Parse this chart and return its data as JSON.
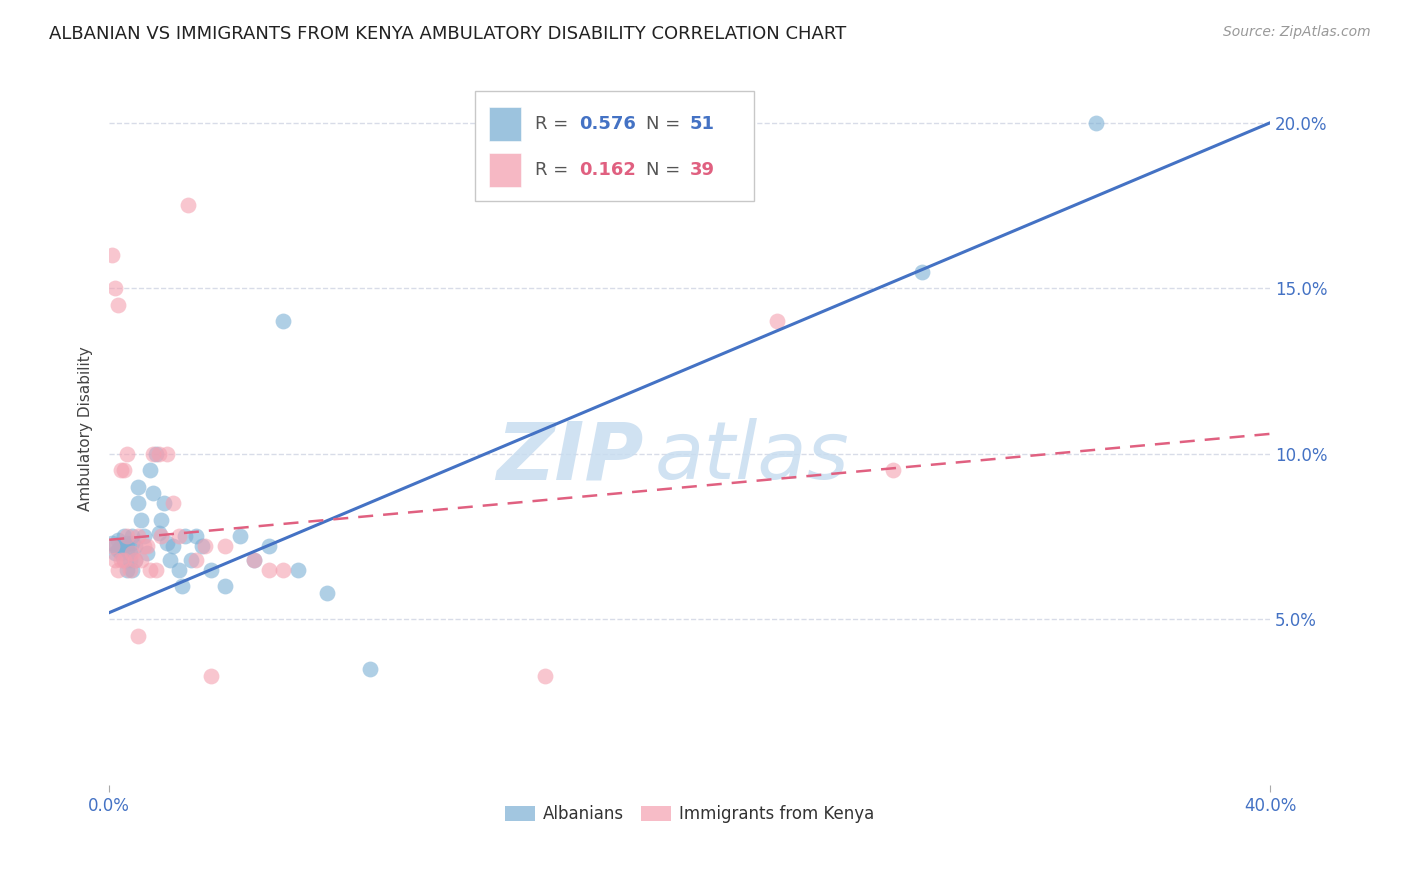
{
  "title": "ALBANIAN VS IMMIGRANTS FROM KENYA AMBULATORY DISABILITY CORRELATION CHART",
  "source": "Source: ZipAtlas.com",
  "ylabel": "Ambulatory Disability",
  "y_ticks": [
    0.05,
    0.1,
    0.15,
    0.2
  ],
  "y_tick_labels": [
    "5.0%",
    "10.0%",
    "15.0%",
    "20.0%"
  ],
  "x_range": [
    0.0,
    0.4
  ],
  "y_range": [
    0.0,
    0.215
  ],
  "legend_r1": "0.576",
  "legend_n1": "51",
  "legend_r2": "0.162",
  "legend_n2": "39",
  "blue_color": "#7BAFD4",
  "pink_color": "#F4A0B0",
  "line_blue": "#4472C4",
  "line_pink": "#E06080",
  "albanians_x": [
    0.001,
    0.002,
    0.002,
    0.003,
    0.003,
    0.004,
    0.004,
    0.005,
    0.005,
    0.005,
    0.006,
    0.006,
    0.006,
    0.007,
    0.007,
    0.008,
    0.008,
    0.008,
    0.009,
    0.009,
    0.01,
    0.01,
    0.011,
    0.012,
    0.013,
    0.014,
    0.015,
    0.016,
    0.017,
    0.018,
    0.019,
    0.02,
    0.021,
    0.022,
    0.024,
    0.025,
    0.026,
    0.028,
    0.03,
    0.032,
    0.035,
    0.04,
    0.045,
    0.05,
    0.055,
    0.06,
    0.065,
    0.075,
    0.09,
    0.28,
    0.34
  ],
  "albanians_y": [
    0.073,
    0.072,
    0.07,
    0.071,
    0.074,
    0.07,
    0.072,
    0.068,
    0.072,
    0.075,
    0.065,
    0.071,
    0.073,
    0.068,
    0.07,
    0.073,
    0.075,
    0.065,
    0.072,
    0.068,
    0.09,
    0.085,
    0.08,
    0.075,
    0.07,
    0.095,
    0.088,
    0.1,
    0.076,
    0.08,
    0.085,
    0.073,
    0.068,
    0.072,
    0.065,
    0.06,
    0.075,
    0.068,
    0.075,
    0.072,
    0.065,
    0.06,
    0.075,
    0.068,
    0.072,
    0.14,
    0.065,
    0.058,
    0.035,
    0.155,
    0.2
  ],
  "kenya_x": [
    0.001,
    0.001,
    0.002,
    0.002,
    0.003,
    0.003,
    0.004,
    0.004,
    0.005,
    0.005,
    0.006,
    0.006,
    0.007,
    0.008,
    0.009,
    0.01,
    0.01,
    0.011,
    0.012,
    0.013,
    0.014,
    0.015,
    0.016,
    0.017,
    0.018,
    0.02,
    0.022,
    0.024,
    0.027,
    0.03,
    0.033,
    0.035,
    0.04,
    0.05,
    0.055,
    0.06,
    0.15,
    0.23,
    0.27
  ],
  "kenya_y": [
    0.072,
    0.16,
    0.068,
    0.15,
    0.145,
    0.065,
    0.095,
    0.068,
    0.095,
    0.068,
    0.1,
    0.075,
    0.065,
    0.07,
    0.068,
    0.075,
    0.045,
    0.068,
    0.072,
    0.072,
    0.065,
    0.1,
    0.065,
    0.1,
    0.075,
    0.1,
    0.085,
    0.075,
    0.175,
    0.068,
    0.072,
    0.033,
    0.072,
    0.068,
    0.065,
    0.065,
    0.033,
    0.14,
    0.095
  ],
  "blue_trendline_x": [
    0.0,
    0.4
  ],
  "blue_trendline_y": [
    0.052,
    0.2
  ],
  "pink_trendline_x": [
    0.0,
    0.4
  ],
  "pink_trendline_y": [
    0.074,
    0.106
  ],
  "watermark_zip": "ZIP",
  "watermark_atlas": "atlas",
  "grid_color": "#D8DCE8",
  "background_color": "#FFFFFF",
  "tick_color": "#4472C4",
  "title_fontsize": 13,
  "source_fontsize": 10,
  "axis_label_fontsize": 11,
  "tick_fontsize": 12
}
